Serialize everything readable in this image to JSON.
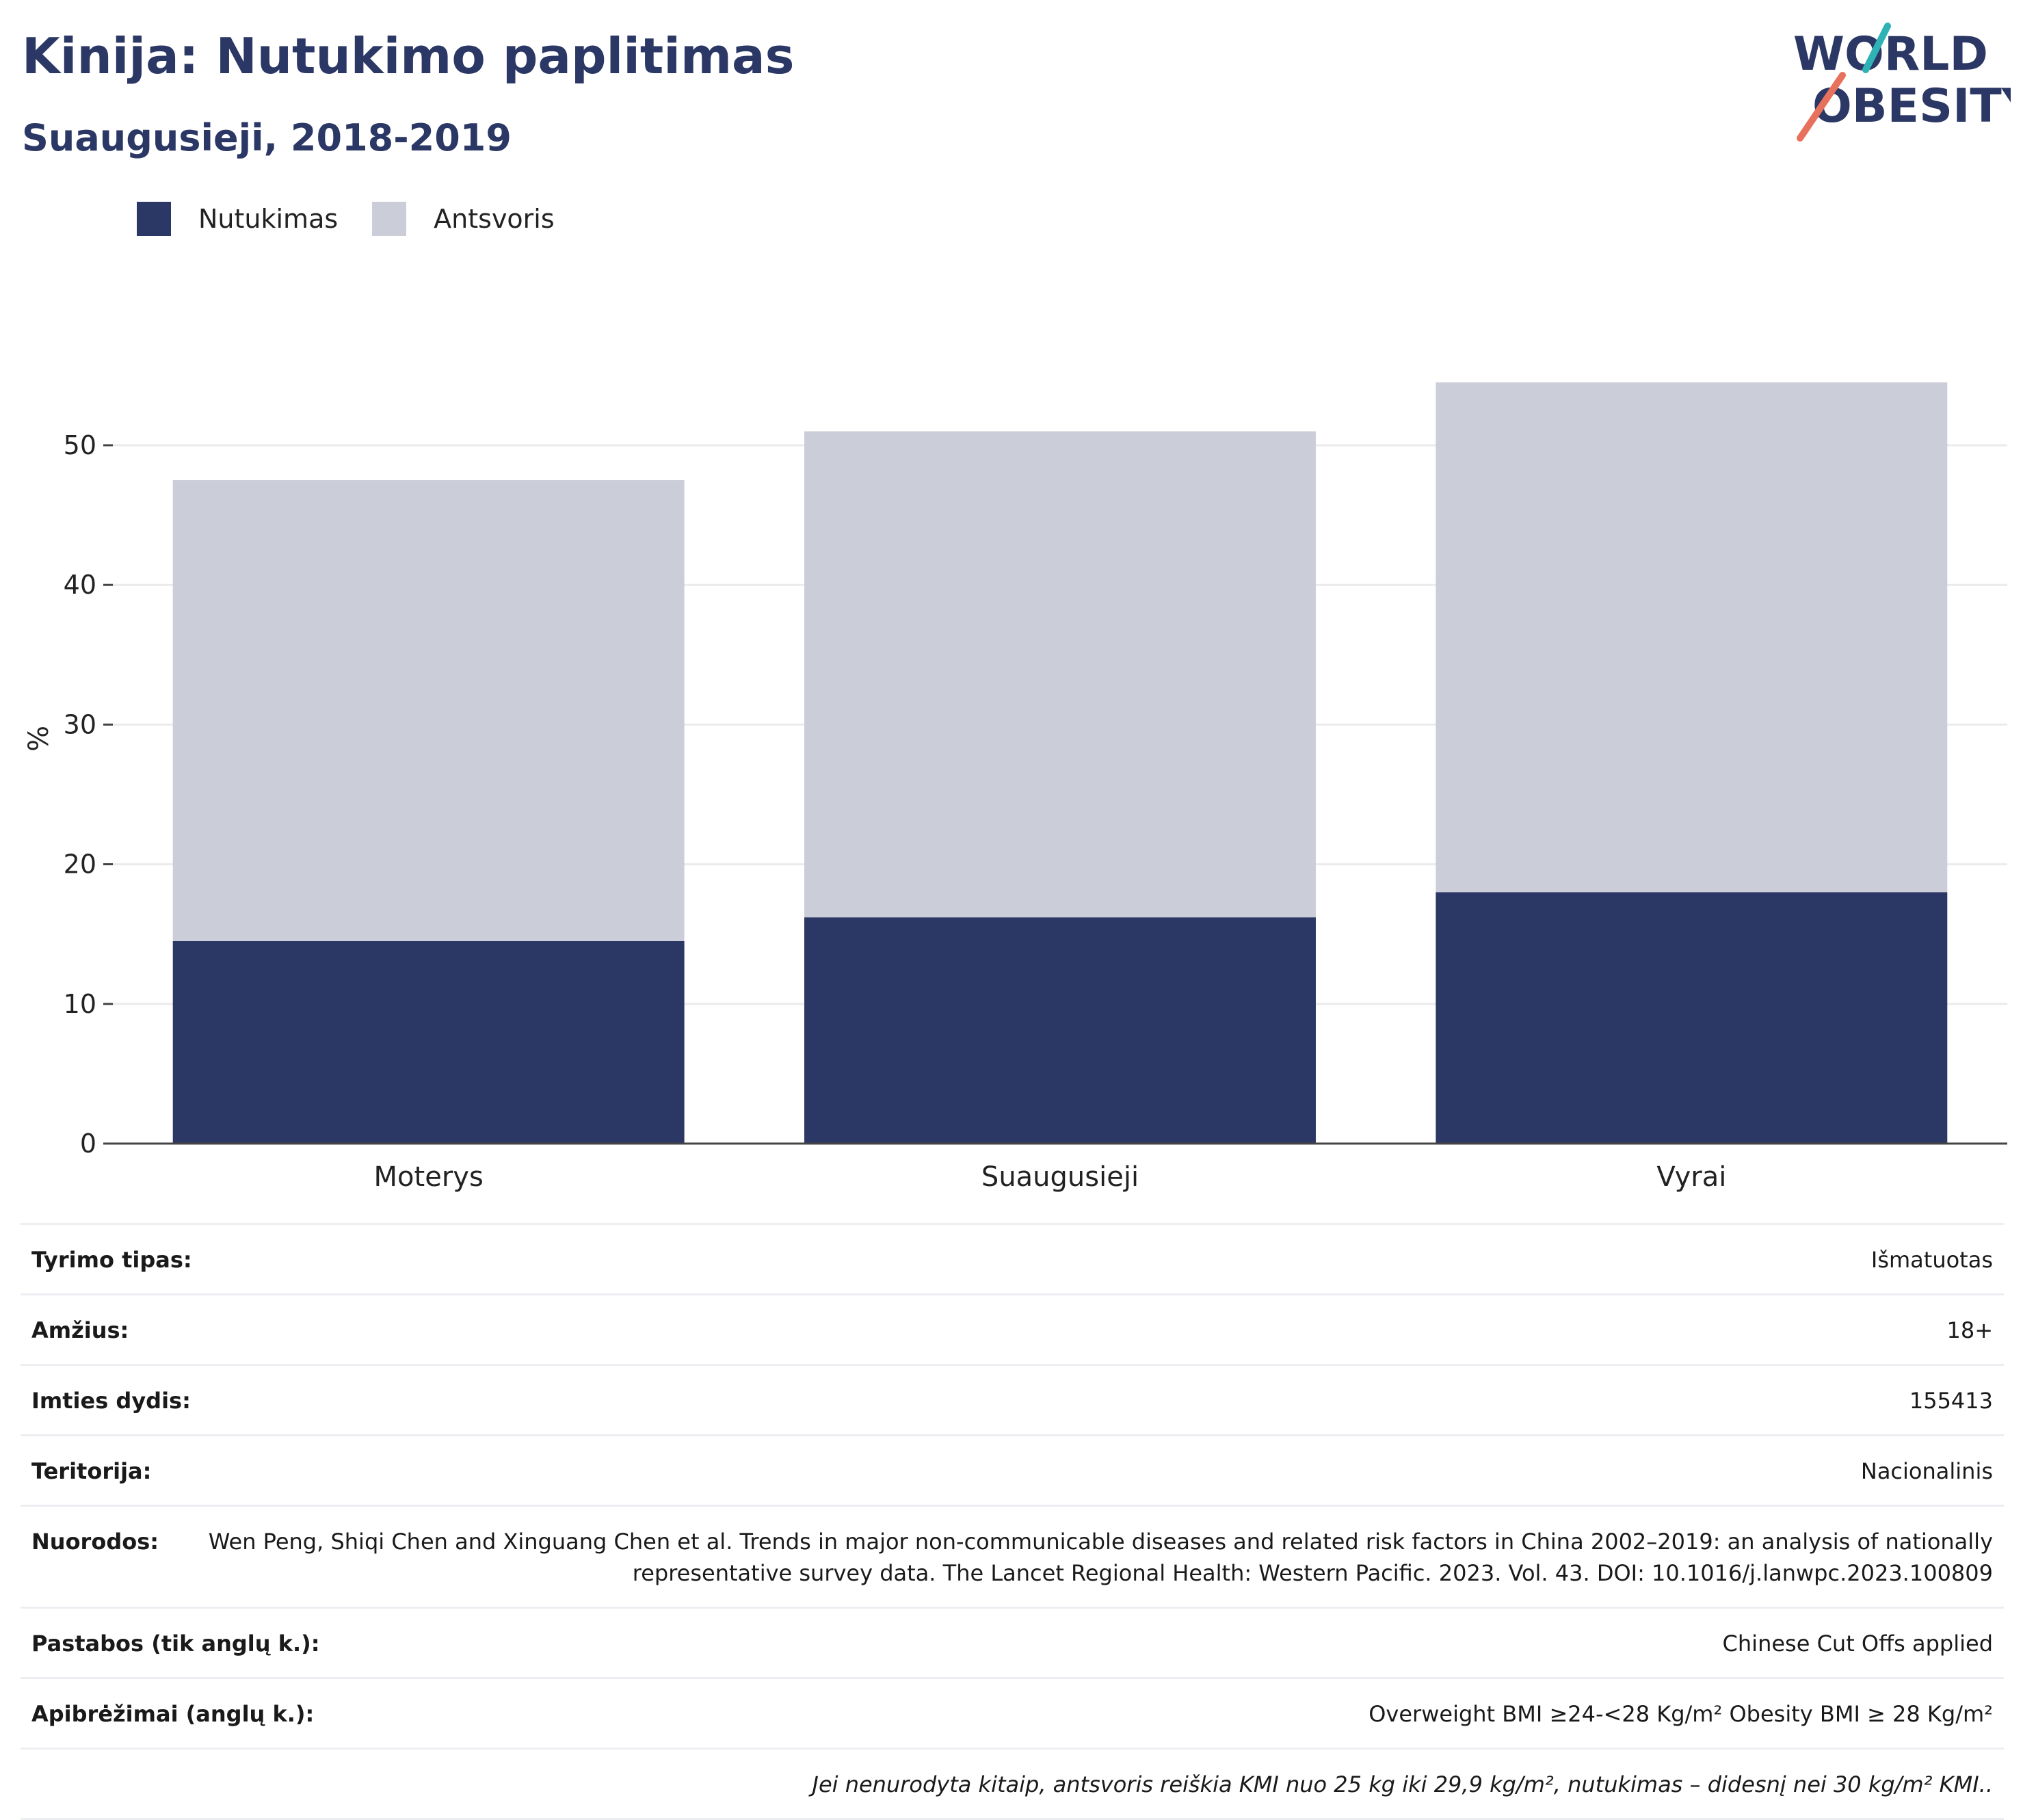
{
  "header": {
    "title": "Kinija: Nutukimo paplitimas",
    "subtitle": "Suaugusieji, 2018-2019"
  },
  "logo": {
    "line1": "WORLD",
    "line2": "OBESITY"
  },
  "colors": {
    "obesity": "#2b3764",
    "overweight": "#cbcdd8",
    "title": "#2b3764",
    "logo_teal": "#2fb2b5",
    "logo_coral": "#e8715e"
  },
  "chart_data": {
    "type": "bar",
    "stacked": true,
    "categories": [
      "Moterys",
      "Suaugusieji",
      "Vyrai"
    ],
    "series": [
      {
        "name": "Nutukimas",
        "values": [
          14.5,
          16.2,
          18.0
        ]
      },
      {
        "name": "Antsvoris",
        "values": [
          33.0,
          34.8,
          36.5
        ]
      }
    ],
    "title": "",
    "xlabel": "",
    "ylabel": "%",
    "ylim": [
      0,
      60
    ],
    "yticks": [
      0,
      10,
      20,
      30,
      40,
      50
    ],
    "grid": true,
    "legend_position": "top-left"
  },
  "meta": {
    "rows": [
      {
        "label": "Tyrimo tipas:",
        "value": "Išmatuotas"
      },
      {
        "label": "Amžius:",
        "value": "18+"
      },
      {
        "label": "Imties dydis:",
        "value": "155413"
      },
      {
        "label": "Teritorija:",
        "value": "Nacionalinis"
      },
      {
        "label": "Nuorodos:",
        "value": "Wen Peng, Shiqi Chen and Xinguang Chen et al. Trends in major non-communicable diseases and related risk factors in China 2002–2019: an analysis of nationally representative survey data. The Lancet Regional Health: Western Pacific. 2023. Vol. 43. DOI: 10.1016/j.lanwpc.2023.100809"
      },
      {
        "label": "Pastabos (tik anglų k.):",
        "value": "Chinese Cut Offs applied"
      },
      {
        "label": "Apibrėžimai (anglų k.):",
        "value": "Overweight BMI ≥24-<28 Kg/m² Obesity BMI ≥ 28 Kg/m²"
      }
    ],
    "footnote": "Jei nenurodyta kitaip, antsvoris reiškia KMI nuo 25 kg iki 29,9 kg/m², nutukimas – didesnį nei 30 kg/m² KMI.."
  }
}
